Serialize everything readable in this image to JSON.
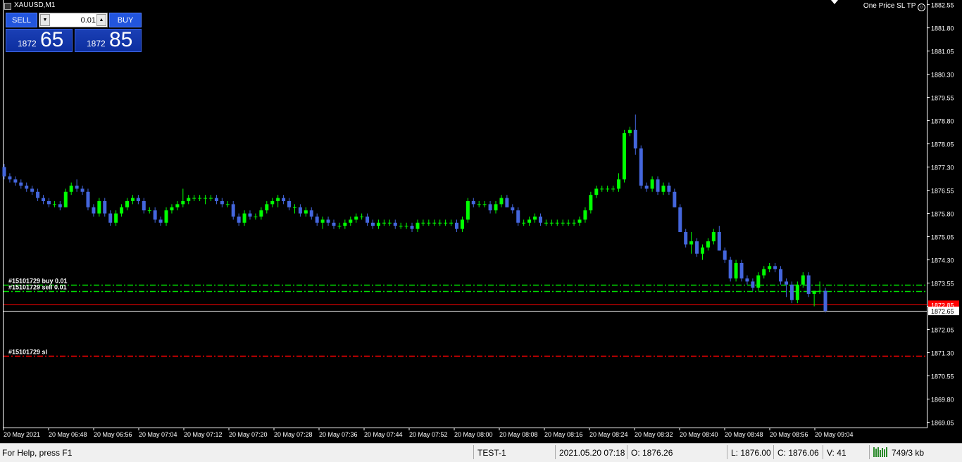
{
  "window": {
    "symbol": "XAUUSD,M1",
    "one_price_label": "One Price SL TP"
  },
  "trade_panel": {
    "sell_label": "SELL",
    "buy_label": "BUY",
    "lot_value": "0.01",
    "sell_price_small": "1872",
    "sell_price_big": "65",
    "buy_price_small": "1872",
    "buy_price_big": "85"
  },
  "chart_data": {
    "type": "candlestick",
    "ylim": [
      1868.88,
      1882.7
    ],
    "y_ticks": [
      "1882.55",
      "1881.80",
      "1881.05",
      "1880.30",
      "1879.55",
      "1878.80",
      "1878.05",
      "1877.30",
      "1876.55",
      "1875.80",
      "1875.05",
      "1874.30",
      "1873.55",
      "1872.80",
      "1872.05",
      "1871.30",
      "1870.55",
      "1869.80",
      "1869.05"
    ],
    "x_ticks": [
      "20 May 2021",
      "20 May 06:48",
      "20 May 06:56",
      "20 May 07:04",
      "20 May 07:12",
      "20 May 07:20",
      "20 May 07:28",
      "20 May 07:36",
      "20 May 07:44",
      "20 May 07:52",
      "20 May 08:00",
      "20 May 08:08",
      "20 May 08:16",
      "20 May 08:24",
      "20 May 08:32",
      "20 May 08:40",
      "20 May 08:48",
      "20 May 08:56",
      "20 May 09:04"
    ],
    "candles": [
      [
        1877.3,
        1877.4,
        1876.9,
        1877.0
      ],
      [
        1877.0,
        1877.1,
        1876.8,
        1876.9
      ],
      [
        1876.9,
        1877.0,
        1876.7,
        1876.8
      ],
      [
        1876.8,
        1876.9,
        1876.6,
        1876.7
      ],
      [
        1876.7,
        1876.8,
        1876.5,
        1876.6
      ],
      [
        1876.6,
        1876.7,
        1876.4,
        1876.5
      ],
      [
        1876.5,
        1876.6,
        1876.2,
        1876.3
      ],
      [
        1876.3,
        1876.4,
        1876.1,
        1876.2
      ],
      [
        1876.2,
        1876.3,
        1876.0,
        1876.1
      ],
      [
        1876.1,
        1876.2,
        1876.0,
        1876.1
      ],
      [
        1876.1,
        1876.2,
        1875.9,
        1876.0
      ],
      [
        1876.0,
        1876.6,
        1876.0,
        1876.5
      ],
      [
        1876.5,
        1876.8,
        1876.4,
        1876.7
      ],
      [
        1876.7,
        1876.9,
        1876.5,
        1876.6
      ],
      [
        1876.6,
        1876.7,
        1876.4,
        1876.5
      ],
      [
        1876.5,
        1876.6,
        1875.9,
        1876.0
      ],
      [
        1876.0,
        1876.1,
        1875.7,
        1875.8
      ],
      [
        1875.8,
        1876.3,
        1875.7,
        1876.2
      ],
      [
        1876.2,
        1876.3,
        1875.7,
        1875.8
      ],
      [
        1875.8,
        1875.9,
        1875.4,
        1875.5
      ],
      [
        1875.5,
        1875.9,
        1875.4,
        1875.8
      ],
      [
        1875.8,
        1876.1,
        1875.7,
        1876.0
      ],
      [
        1876.0,
        1876.3,
        1875.9,
        1876.2
      ],
      [
        1876.2,
        1876.4,
        1876.1,
        1876.3
      ],
      [
        1876.3,
        1876.4,
        1876.1,
        1876.2
      ],
      [
        1876.2,
        1876.3,
        1875.8,
        1875.9
      ],
      [
        1875.9,
        1876.0,
        1875.8,
        1875.9
      ],
      [
        1875.9,
        1876.0,
        1875.5,
        1875.6
      ],
      [
        1875.6,
        1875.7,
        1875.4,
        1875.5
      ],
      [
        1875.5,
        1876.0,
        1875.4,
        1875.9
      ],
      [
        1875.9,
        1876.1,
        1875.8,
        1876.0
      ],
      [
        1876.0,
        1876.2,
        1875.9,
        1876.1
      ],
      [
        1876.1,
        1876.6,
        1876.0,
        1876.2
      ],
      [
        1876.2,
        1876.4,
        1876.1,
        1876.3
      ],
      [
        1876.3,
        1876.4,
        1876.2,
        1876.3
      ],
      [
        1876.3,
        1876.4,
        1876.2,
        1876.3
      ],
      [
        1876.3,
        1876.4,
        1876.1,
        1876.3
      ],
      [
        1876.3,
        1876.4,
        1876.2,
        1876.3
      ],
      [
        1876.3,
        1876.4,
        1876.1,
        1876.2
      ],
      [
        1876.2,
        1876.3,
        1876.0,
        1876.1
      ],
      [
        1876.1,
        1876.2,
        1876.0,
        1876.1
      ],
      [
        1876.1,
        1876.2,
        1875.6,
        1875.7
      ],
      [
        1875.7,
        1875.8,
        1875.4,
        1875.5
      ],
      [
        1875.5,
        1875.9,
        1875.4,
        1875.8
      ],
      [
        1875.8,
        1875.9,
        1875.6,
        1875.7
      ],
      [
        1875.7,
        1875.8,
        1875.6,
        1875.7
      ],
      [
        1875.7,
        1876.0,
        1875.6,
        1875.9
      ],
      [
        1875.9,
        1876.2,
        1875.8,
        1876.1
      ],
      [
        1876.1,
        1876.3,
        1876.0,
        1876.2
      ],
      [
        1876.2,
        1876.4,
        1876.0,
        1876.3
      ],
      [
        1876.3,
        1876.4,
        1876.1,
        1876.2
      ],
      [
        1876.2,
        1876.3,
        1875.9,
        1876.0
      ],
      [
        1876.0,
        1876.1,
        1875.8,
        1876.0
      ],
      [
        1876.0,
        1876.1,
        1875.7,
        1875.8
      ],
      [
        1875.8,
        1876.0,
        1875.7,
        1875.9
      ],
      [
        1875.9,
        1876.0,
        1875.6,
        1875.7
      ],
      [
        1875.7,
        1875.8,
        1875.4,
        1875.5
      ],
      [
        1875.5,
        1875.7,
        1875.3,
        1875.6
      ],
      [
        1875.6,
        1875.7,
        1875.4,
        1875.5
      ],
      [
        1875.5,
        1875.6,
        1875.3,
        1875.4
      ],
      [
        1875.4,
        1875.5,
        1875.3,
        1875.4
      ],
      [
        1875.4,
        1875.6,
        1875.3,
        1875.5
      ],
      [
        1875.5,
        1875.7,
        1875.4,
        1875.6
      ],
      [
        1875.6,
        1875.8,
        1875.5,
        1875.7
      ],
      [
        1875.7,
        1875.8,
        1875.6,
        1875.7
      ],
      [
        1875.7,
        1875.8,
        1875.4,
        1875.5
      ],
      [
        1875.5,
        1875.6,
        1875.3,
        1875.4
      ],
      [
        1875.4,
        1875.6,
        1875.3,
        1875.5
      ],
      [
        1875.5,
        1875.6,
        1875.4,
        1875.5
      ],
      [
        1875.5,
        1875.6,
        1875.4,
        1875.5
      ],
      [
        1875.5,
        1875.6,
        1875.3,
        1875.4
      ],
      [
        1875.4,
        1875.5,
        1875.3,
        1875.4
      ],
      [
        1875.4,
        1875.5,
        1875.3,
        1875.4
      ],
      [
        1875.4,
        1875.5,
        1875.2,
        1875.3
      ],
      [
        1875.3,
        1875.6,
        1875.2,
        1875.5
      ],
      [
        1875.5,
        1875.6,
        1875.4,
        1875.5
      ],
      [
        1875.5,
        1875.6,
        1875.4,
        1875.5
      ],
      [
        1875.5,
        1875.6,
        1875.4,
        1875.5
      ],
      [
        1875.5,
        1875.6,
        1875.4,
        1875.5
      ],
      [
        1875.5,
        1875.6,
        1875.4,
        1875.5
      ],
      [
        1875.5,
        1875.6,
        1875.4,
        1875.5
      ],
      [
        1875.5,
        1875.6,
        1875.2,
        1875.3
      ],
      [
        1875.3,
        1875.7,
        1875.2,
        1875.6
      ],
      [
        1875.6,
        1876.3,
        1875.5,
        1876.2
      ],
      [
        1876.2,
        1876.3,
        1876.0,
        1876.1
      ],
      [
        1876.1,
        1876.2,
        1876.0,
        1876.1
      ],
      [
        1876.1,
        1876.2,
        1876.0,
        1876.1
      ],
      [
        1876.1,
        1876.2,
        1875.8,
        1875.9
      ],
      [
        1875.9,
        1876.2,
        1875.8,
        1876.1
      ],
      [
        1876.1,
        1876.4,
        1876.0,
        1876.3
      ],
      [
        1876.3,
        1876.4,
        1876.0,
        1876.0
      ],
      [
        1876.0,
        1876.1,
        1875.8,
        1875.9
      ],
      [
        1875.9,
        1876.0,
        1875.4,
        1875.5
      ],
      [
        1875.5,
        1875.6,
        1875.4,
        1875.5
      ],
      [
        1875.5,
        1875.7,
        1875.4,
        1875.6
      ],
      [
        1875.6,
        1875.8,
        1875.5,
        1875.7
      ],
      [
        1875.7,
        1875.8,
        1875.4,
        1875.5
      ],
      [
        1875.5,
        1875.6,
        1875.4,
        1875.5
      ],
      [
        1875.5,
        1875.6,
        1875.4,
        1875.5
      ],
      [
        1875.5,
        1875.6,
        1875.4,
        1875.5
      ],
      [
        1875.5,
        1875.6,
        1875.4,
        1875.5
      ],
      [
        1875.5,
        1875.6,
        1875.4,
        1875.5
      ],
      [
        1875.5,
        1875.6,
        1875.4,
        1875.5
      ],
      [
        1875.5,
        1875.7,
        1875.4,
        1875.6
      ],
      [
        1875.6,
        1876.0,
        1875.5,
        1875.9
      ],
      [
        1875.9,
        1876.5,
        1875.8,
        1876.4
      ],
      [
        1876.4,
        1876.7,
        1876.3,
        1876.6
      ],
      [
        1876.6,
        1876.7,
        1876.5,
        1876.6
      ],
      [
        1876.6,
        1876.7,
        1876.5,
        1876.6
      ],
      [
        1876.6,
        1876.7,
        1876.5,
        1876.6
      ],
      [
        1876.6,
        1877.1,
        1876.5,
        1876.9
      ],
      [
        1876.9,
        1878.5,
        1876.8,
        1878.4
      ],
      [
        1878.4,
        1878.6,
        1878.3,
        1878.5
      ],
      [
        1878.5,
        1879.0,
        1877.7,
        1877.9
      ],
      [
        1877.9,
        1878.0,
        1876.6,
        1876.7
      ],
      [
        1876.7,
        1876.8,
        1876.5,
        1876.6
      ],
      [
        1876.6,
        1877.0,
        1876.5,
        1876.9
      ],
      [
        1876.9,
        1877.0,
        1876.4,
        1876.5
      ],
      [
        1876.5,
        1876.8,
        1876.4,
        1876.7
      ],
      [
        1876.7,
        1876.8,
        1876.4,
        1876.5
      ],
      [
        1876.5,
        1876.6,
        1876.0,
        1876.0
      ],
      [
        1876.0,
        1876.1,
        1875.2,
        1875.2
      ],
      [
        1875.2,
        1875.3,
        1874.7,
        1874.8
      ],
      [
        1874.8,
        1875.2,
        1874.5,
        1874.9
      ],
      [
        1874.9,
        1875.0,
        1874.4,
        1874.5
      ],
      [
        1874.5,
        1874.8,
        1874.3,
        1874.7
      ],
      [
        1874.7,
        1875.0,
        1874.6,
        1874.9
      ],
      [
        1874.9,
        1875.3,
        1874.8,
        1875.2
      ],
      [
        1875.2,
        1875.4,
        1874.6,
        1874.6
      ],
      [
        1874.6,
        1874.7,
        1874.2,
        1874.3
      ],
      [
        1874.3,
        1874.4,
        1873.6,
        1873.7
      ],
      [
        1873.7,
        1874.3,
        1873.6,
        1874.2
      ],
      [
        1874.2,
        1874.3,
        1873.6,
        1873.7
      ],
      [
        1873.7,
        1873.8,
        1873.5,
        1873.6
      ],
      [
        1873.6,
        1873.7,
        1873.3,
        1873.4
      ],
      [
        1873.4,
        1873.9,
        1873.3,
        1873.8
      ],
      [
        1873.8,
        1874.1,
        1873.7,
        1874.0
      ],
      [
        1874.0,
        1874.2,
        1873.9,
        1874.1
      ],
      [
        1874.1,
        1874.2,
        1873.9,
        1874.0
      ],
      [
        1874.0,
        1874.1,
        1873.5,
        1873.6
      ],
      [
        1873.6,
        1873.7,
        1873.1,
        1873.5
      ],
      [
        1873.5,
        1873.6,
        1872.9,
        1873.0
      ],
      [
        1873.0,
        1873.6,
        1872.9,
        1873.5
      ],
      [
        1873.5,
        1873.9,
        1873.4,
        1873.8
      ],
      [
        1873.8,
        1873.9,
        1873.1,
        1873.2
      ],
      [
        1873.2,
        1873.3,
        1872.8,
        1873.3
      ],
      [
        1873.3,
        1873.6,
        1873.2,
        1873.3
      ],
      [
        1873.3,
        1873.4,
        1872.6,
        1872.65
      ]
    ],
    "bullish_color": "#00ff00",
    "bearish_color": "#4466dd",
    "lines": [
      {
        "label": "#15101729 buy 0.01",
        "price": 1873.5,
        "color": "#00dd00",
        "style": "dashdot"
      },
      {
        "label": "#15101729 sell 0.01",
        "price": 1873.3,
        "color": "#00dd00",
        "style": "dashdot"
      },
      {
        "label": "",
        "price": 1872.85,
        "color": "#ff0000",
        "style": "solid"
      },
      {
        "label": "",
        "price": 1872.65,
        "color": "#ffffff",
        "style": "solid"
      },
      {
        "label": "#15101729 sl",
        "price": 1871.2,
        "color": "#ff0000",
        "style": "dashdot"
      }
    ],
    "price_labels": [
      {
        "text": "1872.85",
        "price": 1872.85,
        "bg": "#ff0000",
        "fg": "#ffffff"
      },
      {
        "text": "1872.65",
        "price": 1872.65,
        "bg": "#ffffff",
        "fg": "#000000"
      }
    ],
    "grid": false
  },
  "status_bar": {
    "help_text": "For Help, press F1",
    "profile": "TEST-1",
    "datetime": "2021.05.20 07:18",
    "open": "O: 1876.26",
    "low": "L: 1876.00",
    "close": "C: 1876.06",
    "volume": "V: 41",
    "traffic": "749/3 kb"
  }
}
